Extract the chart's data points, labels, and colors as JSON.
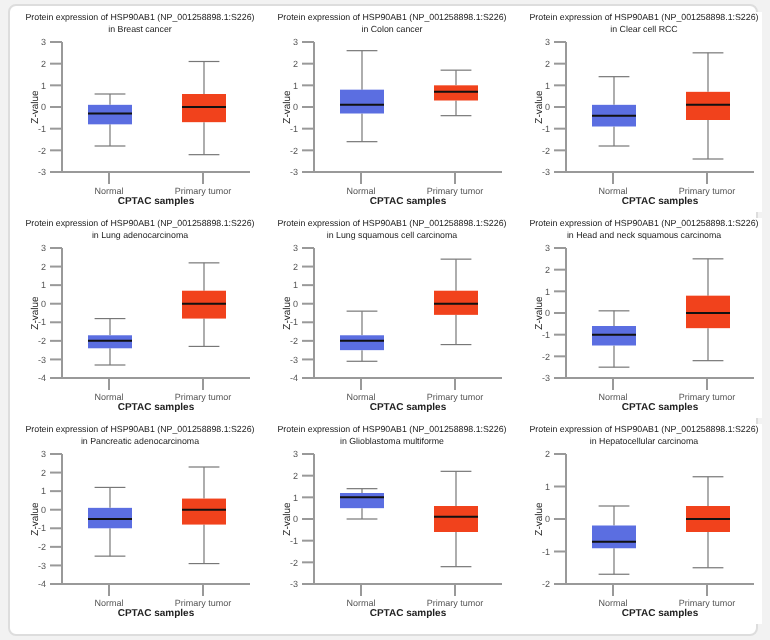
{
  "chart_data": [
    {
      "type": "box",
      "title": "Protein expression of HSP90AB1 (NP_001258898.1:S226) in Breast cancer",
      "xlabel": "CPTAC samples",
      "ylabel": "Z-value",
      "categories": [
        "Normal",
        "Primary tumor"
      ],
      "colors": [
        "#5b6ee1",
        "#f1421c"
      ],
      "ylim": [
        -3,
        3
      ],
      "yticks": [
        -3,
        -2,
        -1,
        0,
        1,
        2,
        3
      ],
      "boxes": [
        {
          "low": -1.8,
          "q1": -0.8,
          "median": -0.3,
          "q3": 0.1,
          "high": 0.6
        },
        {
          "low": -2.2,
          "q1": -0.7,
          "median": 0,
          "q3": 0.6,
          "high": 2.1
        }
      ]
    },
    {
      "type": "box",
      "title": "Protein expression of HSP90AB1 (NP_001258898.1:S226) in Colon cancer",
      "xlabel": "CPTAC samples",
      "ylabel": "Z-value",
      "categories": [
        "Normal",
        "Primary tumor"
      ],
      "colors": [
        "#5b6ee1",
        "#f1421c"
      ],
      "ylim": [
        -3,
        3
      ],
      "yticks": [
        -3,
        -2,
        -1,
        0,
        1,
        2,
        3
      ],
      "boxes": [
        {
          "low": -1.6,
          "q1": -0.3,
          "median": 0.1,
          "q3": 0.8,
          "high": 2.6
        },
        {
          "low": -0.4,
          "q1": 0.3,
          "median": 0.7,
          "q3": 1,
          "high": 1.7
        }
      ]
    },
    {
      "type": "box",
      "title": "Protein expression of HSP90AB1 (NP_001258898.1:S226) in Clear cell RCC",
      "xlabel": "CPTAC samples",
      "ylabel": "Z-value",
      "categories": [
        "Normal",
        "Primary tumor"
      ],
      "colors": [
        "#5b6ee1",
        "#f1421c"
      ],
      "ylim": [
        -3,
        3
      ],
      "yticks": [
        -3,
        -2,
        -1,
        0,
        1,
        2,
        3
      ],
      "boxes": [
        {
          "low": -1.8,
          "q1": -0.9,
          "median": -0.4,
          "q3": 0.1,
          "high": 1.4
        },
        {
          "low": -2.4,
          "q1": -0.6,
          "median": 0.1,
          "q3": 0.7,
          "high": 2.5
        }
      ]
    },
    {
      "type": "box",
      "title": "Protein expression of HSP90AB1 (NP_001258898.1:S226) in Lung adenocarcinoma",
      "xlabel": "CPTAC samples",
      "ylabel": "Z-value",
      "categories": [
        "Normal",
        "Primary tumor"
      ],
      "colors": [
        "#5b6ee1",
        "#f1421c"
      ],
      "ylim": [
        -4,
        3
      ],
      "yticks": [
        -4,
        -3,
        -2,
        -1,
        0,
        1,
        2,
        3
      ],
      "boxes": [
        {
          "low": -3.3,
          "q1": -2.4,
          "median": -2,
          "q3": -1.7,
          "high": -0.8
        },
        {
          "low": -2.3,
          "q1": -0.8,
          "median": 0,
          "q3": 0.7,
          "high": 2.2
        }
      ]
    },
    {
      "type": "box",
      "title": "Protein expression of HSP90AB1 (NP_001258898.1:S226) in Lung squamous cell carcinoma",
      "xlabel": "CPTAC samples",
      "ylabel": "Z-value",
      "categories": [
        "Normal",
        "Primary tumor"
      ],
      "colors": [
        "#5b6ee1",
        "#f1421c"
      ],
      "ylim": [
        -4,
        3
      ],
      "yticks": [
        -4,
        -3,
        -2,
        -1,
        0,
        1,
        2,
        3
      ],
      "boxes": [
        {
          "low": -3.1,
          "q1": -2.5,
          "median": -2,
          "q3": -1.7,
          "high": -0.4
        },
        {
          "low": -2.2,
          "q1": -0.6,
          "median": 0,
          "q3": 0.7,
          "high": 2.4
        }
      ]
    },
    {
      "type": "box",
      "title": "Protein expression of HSP90AB1 (NP_001258898.1:S226) in Head and neck squamous carcinoma",
      "xlabel": "CPTAC samples",
      "ylabel": "Z-value",
      "categories": [
        "Normal",
        "Primary tumor"
      ],
      "colors": [
        "#5b6ee1",
        "#f1421c"
      ],
      "ylim": [
        -3,
        3
      ],
      "yticks": [
        -3,
        -2,
        -1,
        0,
        1,
        2,
        3
      ],
      "boxes": [
        {
          "low": -2.5,
          "q1": -1.5,
          "median": -1,
          "q3": -0.6,
          "high": 0.1
        },
        {
          "low": -2.2,
          "q1": -0.7,
          "median": 0,
          "q3": 0.8,
          "high": 2.5
        }
      ]
    },
    {
      "type": "box",
      "title": "Protein expression of HSP90AB1 (NP_001258898.1:S226) in Pancreatic adenocarcinoma",
      "xlabel": "CPTAC samples",
      "ylabel": "Z-value",
      "categories": [
        "Normal",
        "Primary tumor"
      ],
      "colors": [
        "#5b6ee1",
        "#f1421c"
      ],
      "ylim": [
        -4,
        3
      ],
      "yticks": [
        -4,
        -3,
        -2,
        -1,
        0,
        1,
        2,
        3
      ],
      "boxes": [
        {
          "low": -2.5,
          "q1": -1,
          "median": -0.5,
          "q3": 0.1,
          "high": 1.2
        },
        {
          "low": -2.9,
          "q1": -0.8,
          "median": 0,
          "q3": 0.6,
          "high": 2.3
        }
      ]
    },
    {
      "type": "box",
      "title": "Protein expression of HSP90AB1 (NP_001258898.1:S226) in Glioblastoma multiforme",
      "xlabel": "CPTAC samples",
      "ylabel": "Z-value",
      "categories": [
        "Normal",
        "Primary tumor"
      ],
      "colors": [
        "#5b6ee1",
        "#f1421c"
      ],
      "ylim": [
        -3,
        3
      ],
      "yticks": [
        -3,
        -2,
        -1,
        0,
        1,
        2,
        3
      ],
      "boxes": [
        {
          "low": 0,
          "q1": 0.5,
          "median": 1,
          "q3": 1.2,
          "high": 1.4
        },
        {
          "low": -2.2,
          "q1": -0.6,
          "median": 0.1,
          "q3": 0.6,
          "high": 2.2
        }
      ]
    },
    {
      "type": "box",
      "title": "Protein expression of HSP90AB1 (NP_001258898.1:S226) in Hepatocellular carcinoma",
      "xlabel": "CPTAC samples",
      "ylabel": "Z-value",
      "categories": [
        "Normal",
        "Primary tumor"
      ],
      "colors": [
        "#5b6ee1",
        "#f1421c"
      ],
      "ylim": [
        -2,
        2
      ],
      "yticks": [
        -2,
        -1,
        0,
        1,
        2
      ],
      "boxes": [
        {
          "low": -1.7,
          "q1": -0.9,
          "median": -0.7,
          "q3": -0.2,
          "high": 0.4
        },
        {
          "low": -1.5,
          "q1": -0.4,
          "median": 0,
          "q3": 0.4,
          "high": 1.3
        }
      ]
    }
  ]
}
